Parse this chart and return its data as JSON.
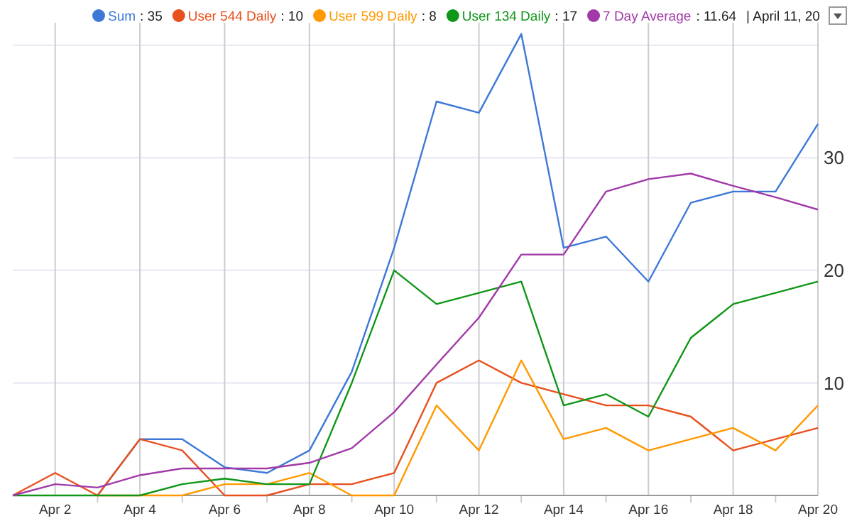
{
  "chart_data": {
    "type": "line",
    "x": [
      "--04-01",
      "--04-02",
      "--04-03",
      "--04-04",
      "--04-05",
      "--04-06",
      "--04-07",
      "--04-08",
      "--04-09",
      "--04-10",
      "--04-11",
      "--04-12",
      "--04-13",
      "--04-14",
      "--04-15",
      "--04-16",
      "--04-17",
      "--04-18",
      "--04-19",
      "--04-20"
    ],
    "series": [
      {
        "name": "Sum",
        "color": "#3d78d8",
        "values": [
          null,
          null,
          0,
          5,
          5,
          2.5,
          2,
          4,
          11,
          22,
          35,
          34,
          41,
          22,
          23,
          19,
          26,
          27,
          27,
          33
        ]
      },
      {
        "name": "User 544 Daily",
        "color": "#e8501e",
        "values": [
          0,
          2,
          0,
          5,
          4,
          0,
          0,
          1,
          1,
          2,
          10,
          12,
          10,
          9,
          8,
          8,
          7,
          4,
          5,
          6
        ]
      },
      {
        "name": "User 599 Daily",
        "color": "#ff9900",
        "values": [
          null,
          null,
          0,
          0,
          0,
          1,
          1,
          2,
          0,
          0,
          8,
          4,
          12,
          5,
          6,
          4,
          5,
          6,
          4,
          8
        ]
      },
      {
        "name": "User 134 Daily",
        "color": "#109618",
        "values": [
          0,
          0,
          0,
          0,
          1,
          1.5,
          1,
          1,
          10,
          20,
          17,
          18,
          19,
          8,
          9,
          7,
          14,
          17,
          18,
          19
        ]
      },
      {
        "name": "7 Day Average",
        "color": "#a13aa8",
        "values": [
          0,
          1,
          0.7,
          1.8,
          2.4,
          2.4,
          2.4,
          2.9,
          4.2,
          7.4,
          11.64,
          15.8,
          21.4,
          21.4,
          27,
          28.1,
          28.6,
          27.5,
          26.5,
          25.4
        ]
      }
    ],
    "xlim": [
      "--04-01",
      "--04-20"
    ],
    "xticks": [
      {
        "value": "--04-02",
        "label": "Apr 2"
      },
      {
        "value": "--04-03",
        "label": null
      },
      {
        "value": "--04-04",
        "label": "Apr 4"
      },
      {
        "value": "--04-05",
        "label": null
      },
      {
        "value": "--04-06",
        "label": "Apr 6"
      },
      {
        "value": "--04-07",
        "label": null
      },
      {
        "value": "--04-08",
        "label": "Apr 8"
      },
      {
        "value": "--04-09",
        "label": null
      },
      {
        "value": "--04-10",
        "label": "Apr 10"
      },
      {
        "value": "--04-11",
        "label": null
      },
      {
        "value": "--04-12",
        "label": "Apr 12"
      },
      {
        "value": "--04-13",
        "label": null
      },
      {
        "value": "--04-14",
        "label": "Apr 14"
      },
      {
        "value": "--04-15",
        "label": null
      },
      {
        "value": "--04-16",
        "label": "Apr 16"
      },
      {
        "value": "--04-17",
        "label": null
      },
      {
        "value": "--04-18",
        "label": "Apr 18"
      },
      {
        "value": "--04-19",
        "label": null
      },
      {
        "value": "--04-20",
        "label": "Apr 20"
      }
    ],
    "ylim": [
      0,
      42
    ],
    "yticks": [
      10,
      20,
      30,
      {
        "value": 40,
        "label": null
      }
    ],
    "grid": true,
    "legend": "top",
    "marker": "none",
    "line_style": "solid",
    "annotations": [
      ": 35",
      ": 10",
      ": 8",
      ": 17",
      ": 11.64",
      "| April 11, 20"
    ]
  }
}
